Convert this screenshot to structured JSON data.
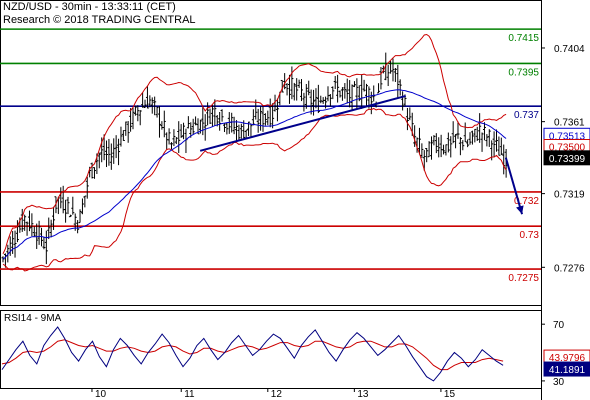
{
  "header": {
    "title": "NZD/USD - 30min - 13:33:11 (CET)",
    "credit": "Research © 2018 TRADING CENTRAL"
  },
  "colors": {
    "resistance": "#008000",
    "pivot": "#00008b",
    "support": "#cc0000",
    "bollinger": "#cc0000",
    "moving_average": "#0000cc",
    "rsi": "#000080",
    "rsi_ma": "#cc0000",
    "arrow": "#00008b",
    "axis_text": "#000000"
  },
  "chart_data": [
    {
      "type": "candlestick",
      "title": "NZD/USD - 30min - 13:33:11 (CET)",
      "x_ticks": [
        "10",
        "11",
        "12",
        "13",
        "15"
      ],
      "y_ticks": [
        0.7404,
        0.7361,
        0.7319,
        0.7276
      ],
      "ylim": [
        0.7254,
        0.7432
      ],
      "grid": false,
      "levels": [
        {
          "label": "0.7415",
          "value": 0.7415,
          "kind": "resistance"
        },
        {
          "label": "0.7395",
          "value": 0.7395,
          "kind": "resistance"
        },
        {
          "label": "0.737",
          "value": 0.737,
          "kind": "pivot"
        },
        {
          "label": "0.732",
          "value": 0.732,
          "kind": "support"
        },
        {
          "label": "0.73",
          "value": 0.73,
          "kind": "support"
        },
        {
          "label": "0.7275",
          "value": 0.7275,
          "kind": "support"
        }
      ],
      "price_tags": [
        {
          "label": "0.73513",
          "value": 0.73513,
          "style": "blue"
        },
        {
          "label": "0.73500",
          "value": 0.735,
          "style": "red"
        },
        {
          "label": "0.73399",
          "value": 0.73399,
          "style": "black"
        }
      ],
      "price_path": [
        [
          0.0,
          0.7281
        ],
        [
          0.02,
          0.7292
        ],
        [
          0.04,
          0.7305
        ],
        [
          0.06,
          0.7298
        ],
        [
          0.08,
          0.7288
        ],
        [
          0.1,
          0.7316
        ],
        [
          0.12,
          0.7312
        ],
        [
          0.14,
          0.7302
        ],
        [
          0.16,
          0.733
        ],
        [
          0.18,
          0.7343
        ],
        [
          0.2,
          0.7341
        ],
        [
          0.22,
          0.7352
        ],
        [
          0.25,
          0.7368
        ],
        [
          0.27,
          0.7374
        ],
        [
          0.29,
          0.7363
        ],
        [
          0.31,
          0.7347
        ],
        [
          0.34,
          0.7356
        ],
        [
          0.37,
          0.7361
        ],
        [
          0.39,
          0.7368
        ],
        [
          0.41,
          0.7362
        ],
        [
          0.44,
          0.7355
        ],
        [
          0.47,
          0.7362
        ],
        [
          0.5,
          0.7366
        ],
        [
          0.52,
          0.7384
        ],
        [
          0.55,
          0.7378
        ],
        [
          0.58,
          0.7371
        ],
        [
          0.61,
          0.7381
        ],
        [
          0.64,
          0.7376
        ],
        [
          0.67,
          0.738
        ],
        [
          0.69,
          0.7374
        ],
        [
          0.7,
          0.7388
        ],
        [
          0.72,
          0.7392
        ],
        [
          0.73,
          0.7385
        ],
        [
          0.74,
          0.7374
        ],
        [
          0.76,
          0.7352
        ],
        [
          0.78,
          0.734
        ],
        [
          0.8,
          0.7349
        ],
        [
          0.82,
          0.7346
        ],
        [
          0.84,
          0.7352
        ],
        [
          0.86,
          0.7348
        ],
        [
          0.88,
          0.7356
        ],
        [
          0.9,
          0.7351
        ],
        [
          0.93,
          0.7339
        ]
      ],
      "trendlines": [
        {
          "from": [
            0.37,
            0.7344
          ],
          "to": [
            0.75,
            0.7376
          ],
          "color": "pivot"
        }
      ],
      "forecast_arrow": {
        "from": [
          0.935,
          0.734
        ],
        "to": [
          0.965,
          0.7307
        ]
      },
      "bollinger_bands": true,
      "moving_average": true
    },
    {
      "type": "line",
      "title": "RSI14 - 9MA",
      "y_ticks": [
        70,
        30
      ],
      "ylim": [
        25,
        80
      ],
      "value_tags": [
        {
          "label": "43.9796",
          "value": 43.9796,
          "style": "red"
        },
        {
          "label": "41.1891",
          "value": 41.1891,
          "style": "blue"
        }
      ],
      "series": [
        {
          "name": "RSI14",
          "values": [
            38,
            45,
            52,
            58,
            48,
            42,
            55,
            62,
            68,
            60,
            50,
            44,
            52,
            58,
            47,
            40,
            52,
            60,
            55,
            48,
            42,
            50,
            56,
            63,
            57,
            48,
            40,
            46,
            55,
            60,
            52,
            45,
            50,
            57,
            62,
            55,
            48,
            52,
            58,
            63,
            60,
            53,
            46,
            55,
            61,
            66,
            58,
            50,
            44,
            52,
            59,
            64,
            60,
            54,
            48,
            52,
            57,
            62,
            55,
            47,
            40,
            33,
            30,
            36,
            44,
            50,
            46,
            40,
            45,
            52,
            48,
            44,
            41
          ]
        },
        {
          "name": "9MA",
          "values": [
            42,
            43,
            46,
            50,
            51,
            50,
            51,
            54,
            58,
            59,
            57,
            55,
            54,
            55,
            53,
            51,
            51,
            53,
            54,
            53,
            51,
            50,
            51,
            54,
            55,
            54,
            51,
            49,
            50,
            53,
            53,
            51,
            50,
            52,
            54,
            55,
            54,
            52,
            53,
            55,
            57,
            57,
            55,
            54,
            55,
            58,
            58,
            56,
            54,
            53,
            54,
            57,
            58,
            58,
            56,
            54,
            54,
            56,
            56,
            54,
            50,
            46,
            41,
            38,
            38,
            41,
            43,
            43,
            43,
            45,
            46,
            45,
            44
          ]
        }
      ]
    }
  ]
}
